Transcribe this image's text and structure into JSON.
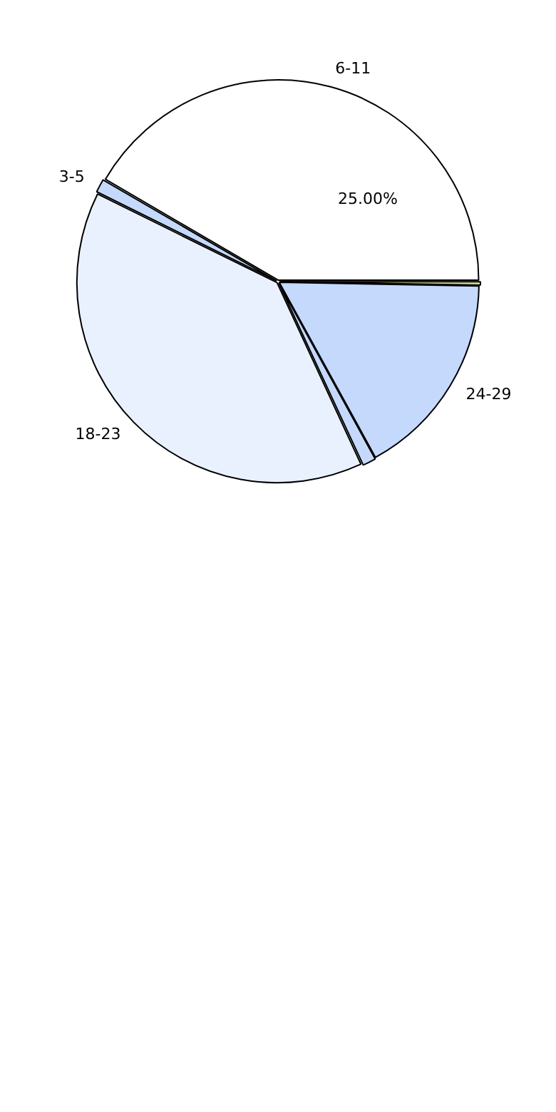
{
  "chart_data": {
    "type": "pie",
    "categories": [
      null,
      "24-29",
      null,
      "18-23",
      "3-5",
      "6-11"
    ],
    "values": [
      0.3,
      16.7,
      1.1,
      39.2,
      1.1,
      41.6
    ],
    "colors": [
      "#d4e09b",
      "#c5d9fd",
      "#c5d9fd",
      "#eaf1fe",
      "#c5d9fd",
      "#ffffff"
    ],
    "annotations": [
      "25.00%"
    ],
    "legend": false
  }
}
